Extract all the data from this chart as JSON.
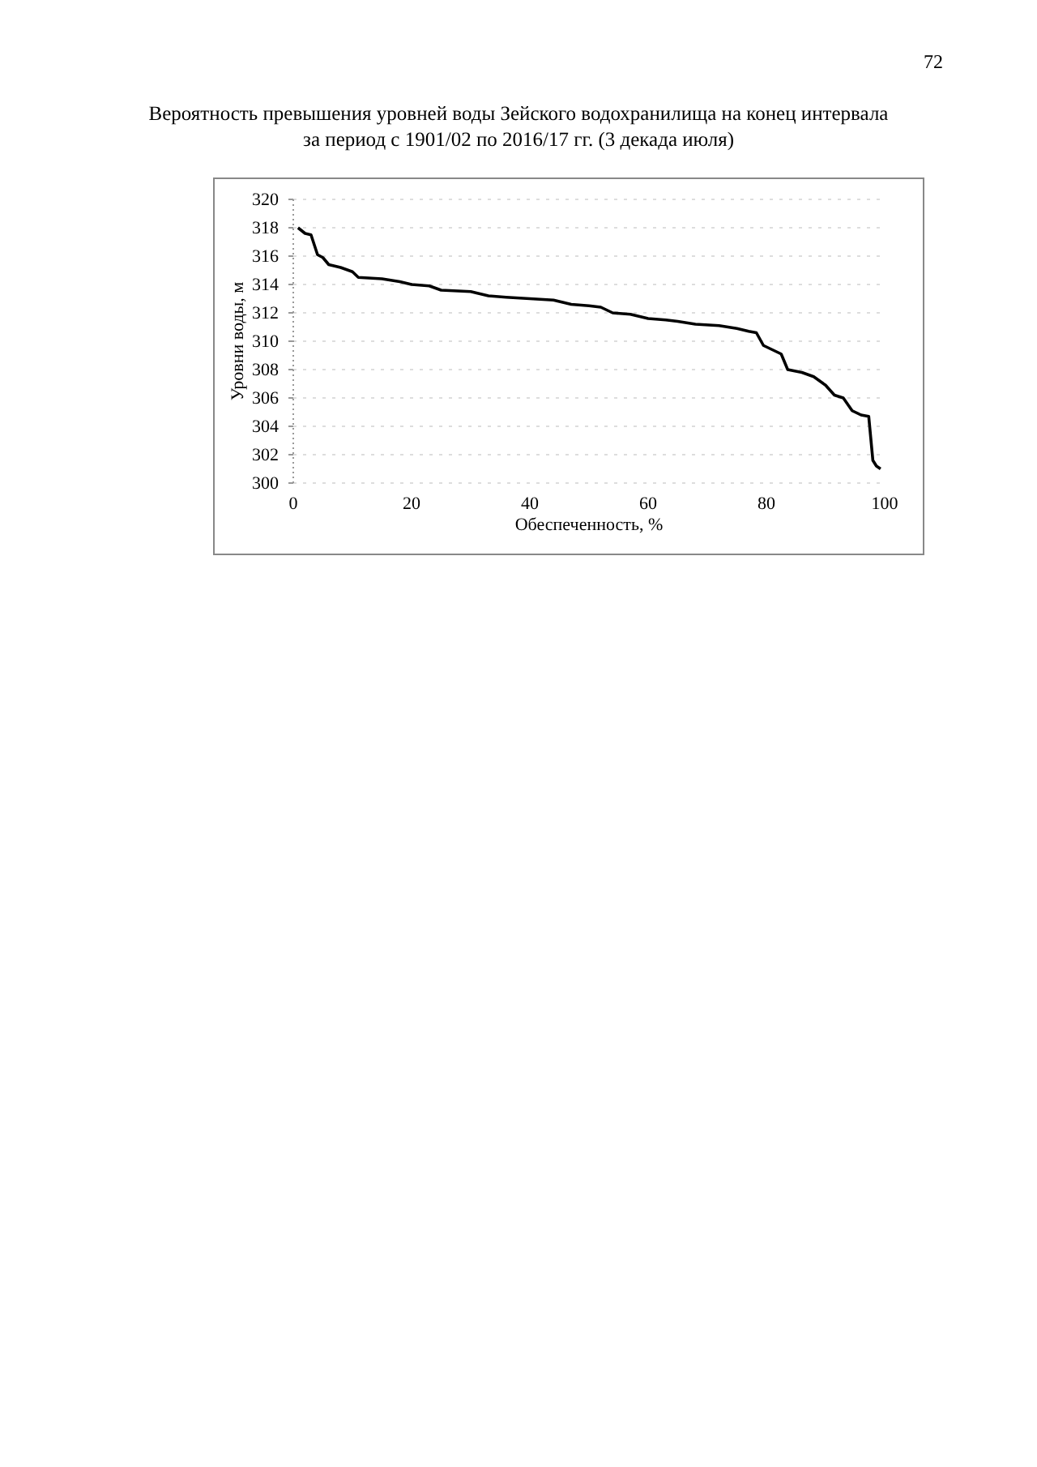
{
  "chart_data": {
    "type": "line",
    "title": "Вероятность превышения уровней воды Зейского водохранилища на конец интервала\nза период с 1901/02 по 2016/17 гг. (3 декада июля)",
    "xlabel": "Обеспеченность, %",
    "ylabel": "Уровни воды, м",
    "annotations": [
      "72"
    ],
    "xlim": [
      0,
      100
    ],
    "xticks": [
      0,
      20,
      40,
      60,
      80,
      100
    ],
    "ylim": [
      300,
      320
    ],
    "yticks": [
      300,
      302,
      304,
      306,
      308,
      310,
      312,
      314,
      316,
      318,
      320
    ],
    "grid": "y",
    "line_style": "solid",
    "series": [
      {
        "color": "#000000",
        "x": [
          0.8,
          2,
          3,
          4.1,
          5,
          6,
          8,
          10,
          11,
          15,
          18,
          20,
          23,
          25,
          30,
          33,
          36,
          40,
          44,
          47,
          50,
          52,
          54,
          57,
          60,
          63,
          65,
          68,
          72,
          75,
          77,
          78.3,
          79.5,
          81,
          82.5,
          83.6,
          86,
          88,
          90,
          91.5,
          93,
          94.5,
          96,
          97.3,
          98,
          98.6,
          99.3
        ],
        "values": [
          318,
          317.6,
          317.5,
          316.1,
          315.9,
          315.4,
          315.2,
          314.9,
          314.5,
          314.4,
          314.2,
          314.0,
          313.9,
          313.6,
          313.5,
          313.2,
          313.1,
          313.0,
          312.9,
          312.6,
          312.5,
          312.4,
          312.0,
          311.9,
          311.6,
          311.5,
          311.4,
          311.2,
          311.1,
          310.9,
          310.7,
          310.6,
          309.7,
          309.4,
          309.1,
          308.0,
          307.8,
          307.5,
          306.9,
          306.2,
          306.0,
          305.1,
          304.8,
          304.7,
          301.6,
          301.2,
          301.0
        ]
      }
    ]
  }
}
